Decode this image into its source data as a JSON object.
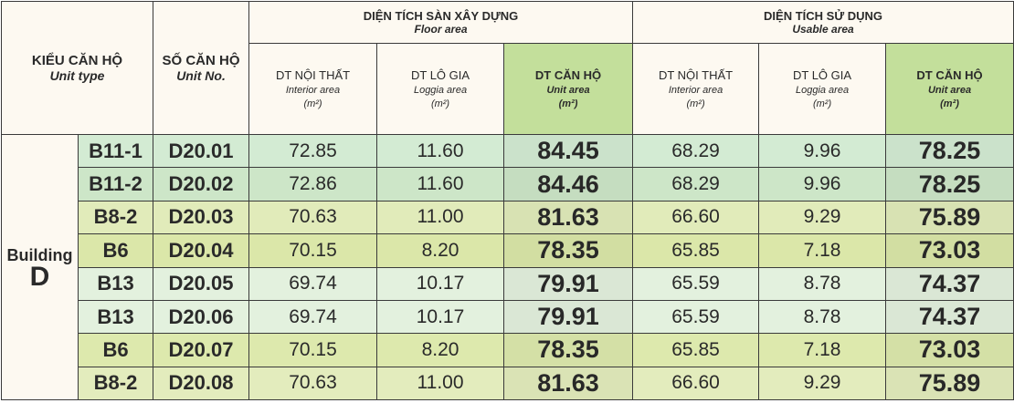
{
  "header": {
    "unit_type": {
      "vi": "KIỂU CĂN HỘ",
      "en": "Unit type"
    },
    "unit_no": {
      "vi": "SỐ CĂN HỘ",
      "en": "Unit No."
    },
    "floor_area": {
      "vi": "DIỆN TÍCH SÀN XÂY DỰNG",
      "en": "Floor area",
      "columns": [
        {
          "vi": "DT NỘI THẤT",
          "en": "Interior area",
          "unit": "(m²)"
        },
        {
          "vi": "DT LÔ GIA",
          "en": "Loggia area",
          "unit": "(m²)"
        },
        {
          "vi": "DT CĂN HỘ",
          "en": "Unit area",
          "unit": "(m²)"
        }
      ]
    },
    "usable_area": {
      "vi": "DIỆN TÍCH SỬ DỤNG",
      "en": "Usable area",
      "columns": [
        {
          "vi": "DT NỘI THẤT",
          "en": "Interior area",
          "unit": "(m²)"
        },
        {
          "vi": "DT LÔ GIA",
          "en": "Loggia area",
          "unit": "(m²)"
        },
        {
          "vi": "DT CĂN HỘ",
          "en": "Unit area",
          "unit": "(m²)"
        }
      ]
    }
  },
  "building": {
    "label": "Building",
    "name": "D"
  },
  "rows": [
    {
      "unit_type": "B11-1",
      "unit_no": "D20.01",
      "values": [
        "72.85",
        "11.60",
        "84.45",
        "68.29",
        "9.96",
        "78.25"
      ]
    },
    {
      "unit_type": "B11-2",
      "unit_no": "D20.02",
      "values": [
        "72.86",
        "11.60",
        "84.46",
        "68.29",
        "9.96",
        "78.25"
      ]
    },
    {
      "unit_type": "B8-2",
      "unit_no": "D20.03",
      "values": [
        "70.63",
        "11.00",
        "81.63",
        "66.60",
        "9.29",
        "75.89"
      ]
    },
    {
      "unit_type": "B6",
      "unit_no": "D20.04",
      "values": [
        "70.15",
        "8.20",
        "78.35",
        "65.85",
        "7.18",
        "73.03"
      ]
    },
    {
      "unit_type": "B13",
      "unit_no": "D20.05",
      "values": [
        "69.74",
        "10.17",
        "79.91",
        "65.59",
        "8.78",
        "74.37"
      ]
    },
    {
      "unit_type": "B13",
      "unit_no": "D20.06",
      "values": [
        "69.74",
        "10.17",
        "79.91",
        "65.59",
        "8.78",
        "74.37"
      ]
    },
    {
      "unit_type": "B6",
      "unit_no": "D20.07",
      "values": [
        "70.15",
        "8.20",
        "78.35",
        "65.85",
        "7.18",
        "73.03"
      ]
    },
    {
      "unit_type": "B8-2",
      "unit_no": "D20.08",
      "values": [
        "70.63",
        "11.00",
        "81.63",
        "66.60",
        "9.29",
        "75.89"
      ]
    }
  ]
}
